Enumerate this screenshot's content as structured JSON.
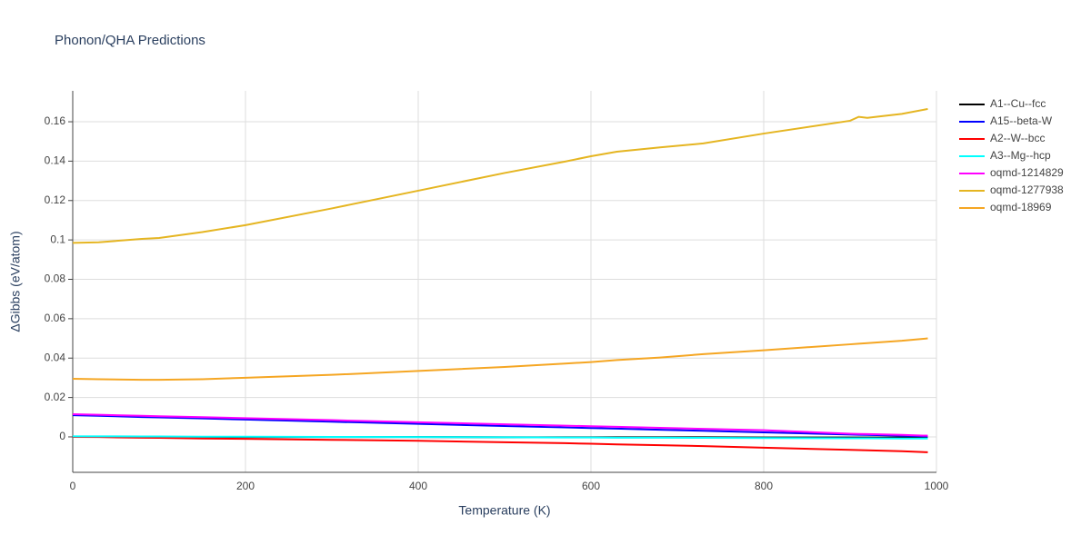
{
  "chart_data": {
    "type": "line",
    "title": "Phonon/QHA Predictions",
    "x_label": "Temperature (K)",
    "y_label": "ΔGibbs (eV/atom)",
    "x": [
      0,
      30,
      80,
      100,
      150,
      200,
      300,
      400,
      500,
      570,
      600,
      630,
      680,
      730,
      800,
      900,
      910,
      920,
      960,
      990
    ],
    "series": [
      {
        "name": "A1--Cu--fcc",
        "color": "#000000",
        "values": [
          0,
          0,
          0,
          0,
          0,
          -0.0001,
          -0.0001,
          -0.0001,
          -0.0002,
          -0.0002,
          -0.0002,
          -0.0002,
          -0.0002,
          -0.0002,
          -0.0003,
          -0.0003,
          -0.0003,
          -0.0003,
          -0.0003,
          -0.0003
        ]
      },
      {
        "name": "A15--beta-W",
        "color": "#0000ff",
        "values": [
          0.011,
          0.0107,
          0.0101,
          0.0099,
          0.0094,
          0.0088,
          0.0077,
          0.0066,
          0.0055,
          0.0048,
          0.0045,
          0.0042,
          0.0036,
          0.0031,
          0.0023,
          0.0012,
          0.0011,
          0.001,
          0.0006,
          0.0003
        ]
      },
      {
        "name": "A2--W--bcc",
        "color": "#ff0000",
        "values": [
          0,
          -0.0001,
          -0.0004,
          -0.0005,
          -0.0008,
          -0.001,
          -0.0015,
          -0.002,
          -0.0027,
          -0.0032,
          -0.0035,
          -0.0038,
          -0.0042,
          -0.0047,
          -0.0055,
          -0.0066,
          -0.0067,
          -0.0068,
          -0.0073,
          -0.0078
        ]
      },
      {
        "name": "A3--Mg--hcp",
        "color": "#00ffff",
        "values": [
          0.0003,
          0.0003,
          0.0002,
          0.0002,
          0.0001,
          0.0001,
          0,
          -0.0001,
          -0.0002,
          -0.0003,
          -0.0003,
          -0.0004,
          -0.0004,
          -0.0005,
          -0.0006,
          -0.0007,
          -0.0007,
          -0.0007,
          -0.0008,
          -0.0008
        ]
      },
      {
        "name": "oqmd-1214829",
        "color": "#ff00ff",
        "values": [
          0.0115,
          0.0112,
          0.0107,
          0.0105,
          0.01,
          0.0095,
          0.0085,
          0.0074,
          0.0064,
          0.0057,
          0.0054,
          0.0051,
          0.0046,
          0.0041,
          0.0034,
          0.0016,
          0.0015,
          0.0014,
          0.001,
          0.0006
        ]
      },
      {
        "name": "oqmd-1277938",
        "color": "#e5b521",
        "values": [
          0.0985,
          0.0988,
          0.1005,
          0.101,
          0.104,
          0.1075,
          0.116,
          0.125,
          0.134,
          0.1398,
          0.1425,
          0.1448,
          0.147,
          0.149,
          0.154,
          0.1605,
          0.1625,
          0.162,
          0.164,
          0.1665
        ]
      },
      {
        "name": "oqmd-18969",
        "color": "#f5a623",
        "values": [
          0.0295,
          0.0293,
          0.029,
          0.029,
          0.0293,
          0.03,
          0.0315,
          0.0335,
          0.0355,
          0.0372,
          0.038,
          0.039,
          0.0403,
          0.042,
          0.044,
          0.047,
          0.0473,
          0.0476,
          0.0488,
          0.05
        ]
      }
    ],
    "xlim": [
      0,
      1000
    ],
    "xticks": [
      0,
      200,
      400,
      600,
      800,
      1000
    ],
    "ylim": [
      -0.018,
      0.1757
    ],
    "yticks": [
      0,
      0.02,
      0.04,
      0.06,
      0.08,
      0.1,
      0.12,
      0.14,
      0.16
    ],
    "grid": true,
    "legend": "right"
  }
}
